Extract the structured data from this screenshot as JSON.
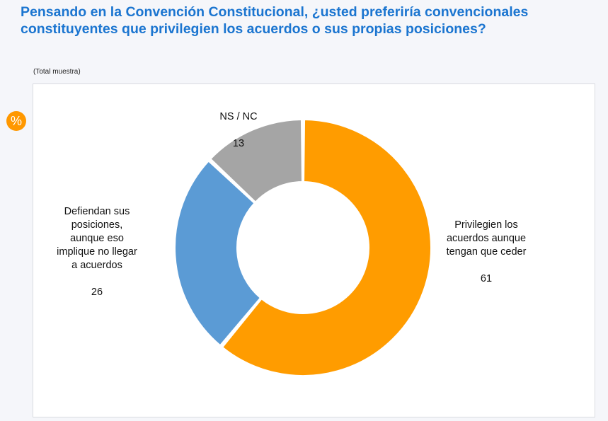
{
  "header": {
    "title": "Pensando en la Convención Constitucional, ¿usted preferiría convencionales constituyentes que privilegien los acuerdos o sus propias posiciones?",
    "subtitle": "(Total muestra)",
    "badge": "%"
  },
  "chart_data": {
    "type": "pie",
    "variant": "donut",
    "title": "Pensando en la Convención Constitucional, ¿usted preferiría convencionales constituyentes que privilegien los acuerdos o sus propias posiciones?",
    "subtitle": "(Total muestra)",
    "unit": "%",
    "start": "top",
    "direction": "clockwise",
    "slices": [
      {
        "label": "Privilegien los acuerdos aunque tengan que ceder",
        "label_lines": "Privilegien los\nacuerdos aunque\ntengan que ceder",
        "value": 61,
        "color": "#ff9c00"
      },
      {
        "label": "Defiendan sus posiciones, aunque eso implique no llegar a acuerdos",
        "label_lines": "Defiendan sus\nposiciones,\naunque eso\nimplique no llegar\na acuerdos",
        "value": 26,
        "color": "#5b9bd5"
      },
      {
        "label": "NS / NC",
        "label_lines": "NS / NC",
        "value": 13,
        "color": "#a5a5a5"
      }
    ]
  }
}
